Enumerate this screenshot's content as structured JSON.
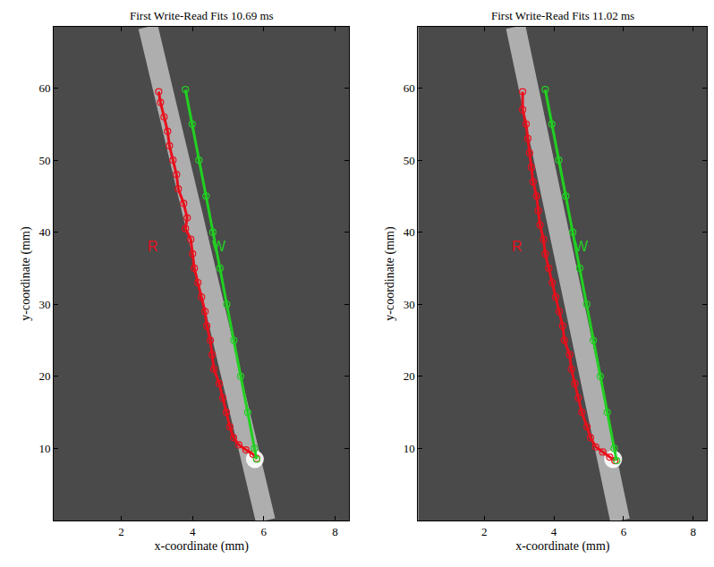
{
  "chart_data": [
    {
      "type": "scatter",
      "title": "First Write-Read Fits 10.69 ms",
      "x_label": "x-coordinate (mm)",
      "y_label": "y-coordinate (mm)",
      "xlim": [
        0.1,
        8.4
      ],
      "ylim": [
        0,
        68.5
      ],
      "xticks": [
        2,
        4,
        6,
        8
      ],
      "yticks": [
        10,
        20,
        30,
        40,
        50,
        60
      ],
      "grid": false,
      "series": [
        {
          "line_style": "band",
          "color": "#d0d0d0",
          "x": [
            2.75,
            6.05
          ],
          "y": [
            68.5,
            0
          ]
        },
        {
          "marker": "ellipse",
          "color": "#ffffff",
          "x": [
            5.75
          ],
          "y": [
            8.5
          ]
        },
        {
          "marker": "circle-open",
          "line_style": "solid",
          "color": "#e8101c",
          "x": [
            3.05,
            3.1,
            3.2,
            3.3,
            3.35,
            3.45,
            3.55,
            3.6,
            3.75,
            3.85,
            3.8,
            3.95,
            4.0,
            4.05,
            4.15,
            4.25,
            4.35,
            4.4,
            4.5,
            4.55,
            4.6,
            4.75,
            4.85,
            4.95,
            5.05,
            5.15,
            5.3,
            5.5,
            5.7,
            5.8
          ],
          "y": [
            59.5,
            58,
            56,
            54,
            52,
            50,
            48,
            46,
            44,
            42,
            40.5,
            39,
            37,
            35,
            33,
            31,
            29,
            27,
            25,
            23,
            21,
            19,
            17,
            15,
            13,
            11.5,
            10.5,
            9.8,
            9.2,
            8.6
          ]
        },
        {
          "marker": "circle-open",
          "line_style": "solid",
          "color": "#22d022",
          "x": [
            3.8,
            3.99,
            4.18,
            4.38,
            4.57,
            4.77,
            4.96,
            5.16,
            5.35,
            5.55,
            5.74,
            5.8
          ],
          "y": [
            59.8,
            55,
            50,
            45,
            40,
            35,
            30,
            25,
            20,
            15,
            10,
            8.5
          ]
        }
      ],
      "annotations": [
        {
          "text": "R",
          "x": 2.9,
          "y": 38,
          "color": "#e8101c"
        },
        {
          "text": "W",
          "x": 4.75,
          "y": 38,
          "color": "#22d022"
        }
      ]
    },
    {
      "type": "scatter",
      "title": "First Write-Read Fits 11.02 ms",
      "x_label": "x-coordinate (mm)",
      "y_label": "y-coordinate (mm)",
      "xlim": [
        0.1,
        8.4
      ],
      "ylim": [
        0,
        68.5
      ],
      "xticks": [
        2,
        4,
        6,
        8
      ],
      "yticks": [
        10,
        20,
        30,
        40,
        50,
        60
      ],
      "grid": false,
      "series": [
        {
          "line_style": "band",
          "color": "#d0d0d0",
          "x": [
            2.9,
            5.9
          ],
          "y": [
            68.5,
            0
          ]
        },
        {
          "marker": "ellipse",
          "color": "#ffffff",
          "x": [
            5.7
          ],
          "y": [
            8.5
          ]
        },
        {
          "marker": "circle-open",
          "line_style": "solid",
          "color": "#e8101c",
          "x": [
            3.1,
            3.1,
            3.2,
            3.25,
            3.3,
            3.35,
            3.4,
            3.5,
            3.55,
            3.6,
            3.7,
            3.75,
            3.85,
            3.95,
            4.05,
            4.15,
            4.25,
            4.3,
            4.45,
            4.5,
            4.6,
            4.7,
            4.8,
            4.95,
            5.05,
            5.2,
            5.4,
            5.6,
            5.75
          ],
          "y": [
            59.5,
            57,
            55,
            53,
            51,
            49,
            47,
            45,
            43,
            41,
            39,
            37,
            35,
            33,
            31,
            29,
            27,
            25,
            23,
            21,
            19,
            17,
            15,
            13,
            11.5,
            10.2,
            9.5,
            8.8,
            8.3
          ]
        },
        {
          "marker": "circle-open",
          "line_style": "solid",
          "color": "#22d022",
          "x": [
            3.75,
            3.94,
            4.14,
            4.34,
            4.54,
            4.74,
            4.94,
            5.13,
            5.33,
            5.53,
            5.73,
            5.8
          ],
          "y": [
            59.8,
            55,
            50,
            45,
            40,
            35,
            30,
            25,
            20,
            15,
            10,
            8.3
          ]
        }
      ],
      "annotations": [
        {
          "text": "R",
          "x": 2.95,
          "y": 38,
          "color": "#e8101c"
        },
        {
          "text": "W",
          "x": 4.8,
          "y": 38,
          "color": "#22d022"
        }
      ]
    }
  ]
}
